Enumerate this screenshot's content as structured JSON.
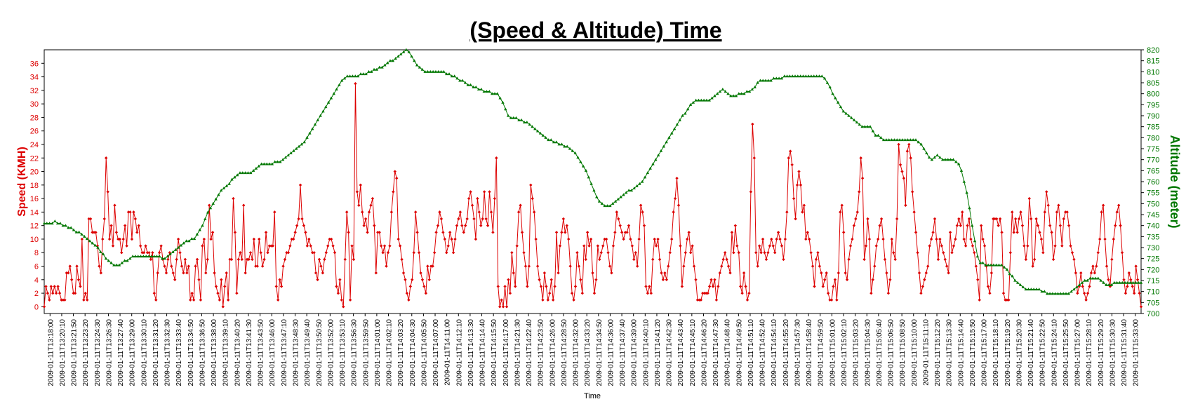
{
  "chart_data": {
    "type": "line",
    "title": "(Speed & Altitude) Time",
    "xlabel": "Time",
    "ylabel_left": "Speed (KMH)",
    "ylabel_right": "Altitude (meter)",
    "ylim_left": [
      -1,
      38
    ],
    "ylim_right": [
      700,
      820
    ],
    "yticks_left": [
      0,
      2,
      4,
      6,
      8,
      10,
      12,
      14,
      16,
      18,
      20,
      22,
      24,
      26,
      28,
      30,
      32,
      34,
      36
    ],
    "yticks_right": [
      700,
      705,
      710,
      715,
      720,
      725,
      730,
      735,
      740,
      745,
      750,
      755,
      760,
      765,
      770,
      775,
      780,
      785,
      790,
      795,
      800,
      805,
      810,
      815,
      820
    ],
    "grid": false,
    "x_ticks": [
      "2009-01-11T13:18:00",
      "2009-01-11T13:20:10",
      "2009-01-11T13:21:50",
      "2009-01-11T13:23:20",
      "2009-01-11T13:24:30",
      "2009-01-11T13:26:30",
      "2009-01-11T13:27:40",
      "2009-01-11T13:29:00",
      "2009-01-11T13:30:10",
      "2009-01-11T13:31:20",
      "2009-01-11T13:32:30",
      "2009-01-11T13:33:40",
      "2009-01-11T13:34:50",
      "2009-01-11T13:36:50",
      "2009-01-11T13:38:00",
      "2009-01-11T13:39:10",
      "2009-01-11T13:40:20",
      "2009-01-11T13:41:30",
      "2009-01-11T13:43:50",
      "2009-01-11T13:46:00",
      "2009-01-11T13:47:10",
      "2009-01-11T13:48:30",
      "2009-01-11T13:49:40",
      "2009-01-11T13:50:50",
      "2009-01-11T13:52:00",
      "2009-01-11T13:53:10",
      "2009-01-11T13:56:30",
      "2009-01-11T13:59:50",
      "2009-01-11T14:01:00",
      "2009-01-11T14:02:10",
      "2009-01-11T14:03:20",
      "2009-01-11T14:04:30",
      "2009-01-11T14:05:50",
      "2009-01-11T14:07:00",
      "2009-01-11T14:11:00",
      "2009-01-11T14:12:10",
      "2009-01-11T14:13:30",
      "2009-01-11T14:14:40",
      "2009-01-11T14:15:50",
      "2009-01-11T14:17:00",
      "2009-01-11T14:21:30",
      "2009-01-11T14:22:40",
      "2009-01-11T14:23:50",
      "2009-01-11T14:26:00",
      "2009-01-11T14:28:50",
      "2009-01-11T14:32:00",
      "2009-01-11T14:33:20",
      "2009-01-11T14:34:50",
      "2009-01-11T14:36:00",
      "2009-01-11T14:37:40",
      "2009-01-11T14:39:00",
      "2009-01-11T14:40:10",
      "2009-01-11T14:41:20",
      "2009-01-11T14:42:30",
      "2009-01-11T14:43:40",
      "2009-01-11T14:45:10",
      "2009-01-11T14:46:20",
      "2009-01-11T14:47:30",
      "2009-01-11T14:48:40",
      "2009-01-11T14:49:50",
      "2009-01-11T14:51:10",
      "2009-01-11T14:52:40",
      "2009-01-11T14:54:10",
      "2009-01-11T14:55:20",
      "2009-01-11T14:57:30",
      "2009-01-11T14:58:40",
      "2009-01-11T14:59:50",
      "2009-01-11T15:01:00",
      "2009-01-11T15:02:10",
      "2009-01-11T15:03:20",
      "2009-01-11T15:04:30",
      "2009-01-11T15:05:40",
      "2009-01-11T15:06:50",
      "2009-01-11T15:08:50",
      "2009-01-11T15:10:00",
      "2009-01-11T15:11:10",
      "2009-01-11T15:12:20",
      "2009-01-11T15:13:30",
      "2009-01-11T15:14:40",
      "2009-01-11T15:15:50",
      "2009-01-11T15:17:00",
      "2009-01-11T15:18:10",
      "2009-01-11T15:19:20",
      "2009-01-11T15:20:30",
      "2009-01-11T15:21:40",
      "2009-01-11T15:22:50",
      "2009-01-11T15:24:10",
      "2009-01-11T15:25:50",
      "2009-01-11T15:27:00",
      "2009-01-11T15:28:10",
      "2009-01-11T15:29:20",
      "2009-01-11T15:30:30",
      "2009-01-11T15:31:40",
      "2009-01-11T15:33:00"
    ],
    "series": [
      {
        "axis": "left",
        "color": "#dd0000",
        "marker": "diamond",
        "values": [
          0,
          3,
          2,
          1,
          3,
          2,
          3,
          2,
          3,
          2,
          1,
          1,
          1,
          5,
          5,
          6,
          4,
          2,
          2,
          6,
          4,
          3,
          10,
          1,
          2,
          1,
          13,
          13,
          11,
          11,
          11,
          9,
          6,
          5,
          10,
          13,
          22,
          17,
          10,
          12,
          9,
          15,
          11,
          10,
          10,
          8,
          10,
          12,
          9,
          14,
          14,
          10,
          14,
          13,
          11,
          12,
          9,
          8,
          8,
          9,
          8,
          8,
          7,
          8,
          2,
          1,
          5,
          8,
          9,
          7,
          6,
          5,
          7,
          8,
          6,
          5,
          4,
          7,
          10,
          8,
          6,
          5,
          7,
          5,
          6,
          1,
          2,
          1,
          6,
          7,
          4,
          1,
          9,
          10,
          5,
          7,
          15,
          10,
          11,
          5,
          3,
          2,
          1,
          4,
          0,
          3,
          5,
          1,
          7,
          7,
          16,
          11,
          2,
          7,
          8,
          7,
          15,
          5,
          7,
          7,
          8,
          7,
          10,
          6,
          6,
          10,
          8,
          6,
          7,
          11,
          8,
          9,
          9,
          9,
          14,
          3,
          1,
          4,
          3,
          6,
          7,
          8,
          8,
          9,
          10,
          10,
          11,
          12,
          13,
          18,
          13,
          12,
          11,
          9,
          10,
          9,
          8,
          8,
          5,
          4,
          7,
          6,
          5,
          7,
          8,
          9,
          10,
          10,
          9,
          8,
          3,
          2,
          4,
          1,
          0,
          7,
          14,
          11,
          1,
          9,
          7,
          33,
          17,
          15,
          18,
          14,
          12,
          13,
          11,
          14,
          15,
          16,
          12,
          5,
          11,
          11,
          9,
          8,
          9,
          6,
          8,
          9,
          14,
          17,
          20,
          19,
          10,
          9,
          7,
          5,
          4,
          2,
          1,
          3,
          4,
          8,
          14,
          11,
          8,
          5,
          4,
          3,
          2,
          6,
          4,
          6,
          6,
          8,
          11,
          12,
          14,
          13,
          11,
          10,
          8,
          9,
          11,
          10,
          8,
          10,
          12,
          13,
          14,
          12,
          11,
          12,
          13,
          16,
          17,
          15,
          13,
          10,
          16,
          14,
          12,
          13,
          17,
          13,
          12,
          17,
          14,
          11,
          16,
          22,
          3,
          0,
          1,
          0,
          3,
          0,
          4,
          2,
          8,
          5,
          3,
          9,
          14,
          15,
          11,
          8,
          6,
          3,
          6,
          18,
          16,
          14,
          10,
          6,
          4,
          3,
          1,
          5,
          3,
          1,
          2,
          4,
          1,
          3,
          11,
          5,
          9,
          11,
          13,
          11,
          12,
          10,
          6,
          2,
          1,
          3,
          8,
          6,
          4,
          2,
          9,
          7,
          11,
          9,
          10,
          5,
          2,
          4,
          9,
          7,
          8,
          9,
          10,
          10,
          8,
          6,
          5,
          9,
          11,
          14,
          13,
          12,
          11,
          10,
          11,
          11,
          12,
          10,
          9,
          7,
          8,
          6,
          10,
          15,
          14,
          12,
          3,
          2,
          3,
          2,
          7,
          10,
          9,
          10,
          7,
          5,
          4,
          5,
          4,
          6,
          8,
          10,
          14,
          16,
          19,
          15,
          9,
          3,
          6,
          8,
          10,
          11,
          8,
          9,
          6,
          4,
          1,
          1,
          1,
          2,
          2,
          2,
          2,
          3,
          4,
          3,
          4,
          1,
          3,
          5,
          6,
          7,
          8,
          7,
          6,
          5,
          11,
          8,
          12,
          9,
          8,
          3,
          2,
          5,
          3,
          1,
          2,
          17,
          27,
          22,
          8,
          6,
          9,
          8,
          10,
          8,
          7,
          8,
          9,
          10,
          9,
          8,
          10,
          11,
          10,
          9,
          7,
          10,
          14,
          22,
          23,
          21,
          16,
          13,
          18,
          20,
          18,
          14,
          15,
          10,
          11,
          10,
          8,
          6,
          3,
          7,
          8,
          6,
          5,
          3,
          4,
          5,
          2,
          1,
          1,
          3,
          4,
          1,
          5,
          14,
          15,
          11,
          5,
          4,
          7,
          9,
          10,
          12,
          13,
          14,
          17,
          22,
          19,
          7,
          9,
          13,
          10,
          2,
          4,
          6,
          9,
          10,
          12,
          13,
          10,
          7,
          5,
          2,
          4,
          10,
          8,
          7,
          13,
          24,
          21,
          20,
          19,
          15,
          23,
          24,
          22,
          17,
          14,
          11,
          8,
          5,
          2,
          3,
          4,
          5,
          6,
          9,
          10,
          11,
          13,
          10,
          7,
          10,
          9,
          8,
          7,
          6,
          5,
          11,
          8,
          9,
          10,
          12,
          13,
          12,
          14,
          10,
          9,
          12,
          13,
          10,
          9,
          8,
          6,
          4,
          1,
          12,
          10,
          9,
          6,
          3,
          2,
          5,
          13,
          13,
          13,
          12,
          13,
          11,
          2,
          1,
          1,
          1,
          8,
          14,
          11,
          13,
          11,
          13,
          14,
          12,
          9,
          7,
          9,
          16,
          13,
          6,
          7,
          13,
          12,
          11,
          10,
          8,
          14,
          17,
          15,
          12,
          11,
          7,
          9,
          14,
          15,
          12,
          9,
          13,
          14,
          14,
          12,
          9,
          8,
          7,
          5,
          2,
          3,
          5,
          3,
          2,
          1,
          2,
          3,
          5,
          6,
          5,
          6,
          8,
          10,
          14,
          15,
          10,
          6,
          4,
          3,
          7,
          10,
          12,
          14,
          15,
          12,
          8,
          4,
          2,
          3,
          5,
          4,
          3,
          2,
          6,
          4,
          2,
          0
        ]
      },
      {
        "axis": "right",
        "color": "#007700",
        "marker": "triangle",
        "values": [
          741,
          741,
          741,
          741,
          742,
          741,
          741,
          740,
          740,
          739,
          739,
          738,
          737,
          737,
          736,
          735,
          734,
          733,
          732,
          731,
          730,
          728,
          727,
          725,
          724,
          723,
          722,
          722,
          722,
          723,
          724,
          724,
          725,
          726,
          726,
          726,
          726,
          726,
          726,
          726,
          726,
          726,
          726,
          726,
          725,
          725,
          726,
          727,
          728,
          729,
          730,
          731,
          732,
          733,
          733,
          734,
          734,
          736,
          738,
          740,
          743,
          746,
          748,
          750,
          752,
          754,
          756,
          757,
          758,
          759,
          761,
          762,
          763,
          764,
          764,
          764,
          764,
          764,
          765,
          766,
          767,
          768,
          768,
          768,
          768,
          768,
          769,
          769,
          769,
          770,
          771,
          772,
          773,
          774,
          775,
          776,
          777,
          778,
          780,
          782,
          784,
          786,
          788,
          790,
          792,
          794,
          796,
          798,
          800,
          802,
          804,
          806,
          807,
          808,
          808,
          808,
          808,
          808,
          809,
          809,
          809,
          810,
          810,
          811,
          811,
          812,
          812,
          813,
          814,
          815,
          815,
          816,
          817,
          818,
          819,
          820,
          819,
          817,
          815,
          813,
          812,
          811,
          810,
          810,
          810,
          810,
          810,
          810,
          810,
          810,
          809,
          809,
          808,
          808,
          807,
          806,
          806,
          805,
          804,
          804,
          803,
          803,
          802,
          802,
          801,
          801,
          801,
          800,
          800,
          800,
          798,
          796,
          793,
          790,
          789,
          789,
          789,
          788,
          788,
          787,
          787,
          786,
          785,
          784,
          783,
          782,
          781,
          780,
          779,
          779,
          778,
          778,
          777,
          777,
          776,
          776,
          775,
          774,
          773,
          771,
          769,
          767,
          765,
          762,
          759,
          756,
          753,
          751,
          750,
          749,
          749,
          749,
          750,
          751,
          752,
          753,
          754,
          755,
          756,
          756,
          757,
          758,
          759,
          760,
          762,
          764,
          766,
          768,
          770,
          772,
          774,
          776,
          778,
          780,
          782,
          784,
          786,
          788,
          790,
          791,
          793,
          795,
          796,
          797,
          797,
          797,
          797,
          797,
          797,
          798,
          799,
          800,
          801,
          802,
          801,
          800,
          799,
          799,
          799,
          800,
          800,
          800,
          801,
          801,
          802,
          803,
          805,
          806,
          806,
          806,
          806,
          806,
          807,
          807,
          807,
          807,
          808,
          808,
          808,
          808,
          808,
          808,
          808,
          808,
          808,
          808,
          808,
          808,
          808,
          808,
          808,
          807,
          805,
          803,
          800,
          798,
          796,
          794,
          792,
          791,
          790,
          789,
          788,
          787,
          786,
          785,
          785,
          785,
          785,
          783,
          781,
          781,
          780,
          779,
          779,
          779,
          779,
          779,
          779,
          779,
          779,
          779,
          779,
          779,
          779,
          779,
          778,
          777,
          775,
          773,
          771,
          770,
          771,
          772,
          771,
          770,
          770,
          770,
          770,
          770,
          769,
          768,
          765,
          760,
          755,
          748,
          740,
          733,
          726,
          723,
          723,
          722,
          722,
          722,
          722,
          722,
          722,
          722,
          721,
          720,
          718,
          717,
          715,
          714,
          713,
          712,
          711,
          711,
          711,
          711,
          711,
          711,
          710,
          710,
          709,
          709,
          709,
          709,
          709,
          709,
          709,
          709,
          709,
          710,
          711,
          712,
          713,
          714,
          715,
          715,
          716,
          716,
          716,
          716,
          715,
          714,
          713,
          713,
          713,
          714,
          714,
          714,
          714,
          714,
          714,
          714,
          714,
          714,
          714,
          714
        ]
      }
    ]
  }
}
